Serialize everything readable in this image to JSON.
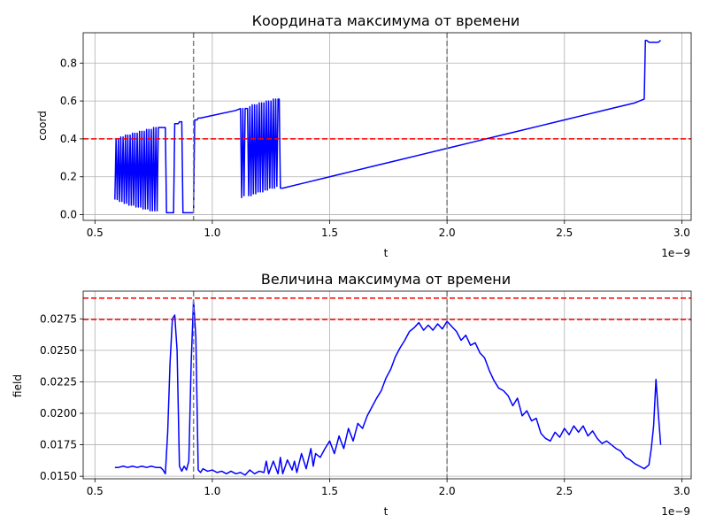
{
  "chart_data": [
    {
      "type": "line",
      "title": "Координата максимума от времени",
      "xlabel": "t",
      "ylabel": "coord",
      "x_offset_text": "1e−9",
      "xlim": [
        0.45,
        3.04
      ],
      "ylim": [
        -0.03,
        0.96
      ],
      "xticks": [
        0.5,
        1.0,
        1.5,
        2.0,
        2.5,
        3.0
      ],
      "xtick_labels": [
        "0.5",
        "1.0",
        "1.5",
        "2.0",
        "2.5",
        "3.0"
      ],
      "yticks": [
        0.0,
        0.2,
        0.4,
        0.6,
        0.8
      ],
      "ytick_labels": [
        "0.0",
        "0.2",
        "0.4",
        "0.6",
        "0.8"
      ],
      "grid": true,
      "series": [
        {
          "color": "#0000ff",
          "x": [
            0.585,
            0.59,
            0.595,
            0.6,
            0.605,
            0.61,
            0.615,
            0.62,
            0.625,
            0.63,
            0.635,
            0.64,
            0.645,
            0.65,
            0.655,
            0.66,
            0.665,
            0.67,
            0.675,
            0.68,
            0.685,
            0.69,
            0.695,
            0.7,
            0.705,
            0.71,
            0.715,
            0.72,
            0.725,
            0.73,
            0.735,
            0.74,
            0.745,
            0.75,
            0.755,
            0.76,
            0.765,
            0.77,
            0.775,
            0.78,
            0.785,
            0.79,
            0.795,
            0.8,
            0.805,
            0.81,
            0.815,
            0.82,
            0.825,
            0.83,
            0.835,
            0.84,
            0.845,
            0.85,
            0.855,
            0.86,
            0.865,
            0.87,
            0.875,
            0.88,
            0.885,
            0.89,
            0.895,
            0.9,
            0.905,
            0.91,
            0.915,
            0.92,
            0.925,
            0.93,
            0.935,
            0.94,
            0.945,
            0.95,
            1.1,
            1.12,
            1.125,
            1.13,
            1.135,
            1.14,
            1.145,
            1.15,
            1.155,
            1.16,
            1.165,
            1.17,
            1.175,
            1.18,
            1.185,
            1.19,
            1.195,
            1.2,
            1.205,
            1.21,
            1.215,
            1.22,
            1.225,
            1.23,
            1.235,
            1.24,
            1.245,
            1.25,
            1.255,
            1.26,
            1.265,
            1.27,
            1.275,
            1.28,
            1.285,
            1.29,
            1.295,
            1.3,
            1.4,
            1.5,
            1.6,
            1.7,
            1.8,
            1.9,
            2.0,
            2.1,
            2.2,
            2.3,
            2.4,
            2.5,
            2.6,
            2.7,
            2.8,
            2.84,
            2.845,
            2.85,
            2.86,
            2.87,
            2.88,
            2.9,
            2.91
          ],
          "y": [
            0.08,
            0.4,
            0.08,
            0.4,
            0.07,
            0.41,
            0.07,
            0.41,
            0.06,
            0.42,
            0.06,
            0.42,
            0.05,
            0.42,
            0.05,
            0.43,
            0.05,
            0.43,
            0.04,
            0.43,
            0.04,
            0.44,
            0.04,
            0.44,
            0.03,
            0.44,
            0.03,
            0.45,
            0.03,
            0.45,
            0.02,
            0.45,
            0.02,
            0.46,
            0.02,
            0.46,
            0.02,
            0.46,
            0.46,
            0.46,
            0.46,
            0.46,
            0.46,
            0.46,
            0.01,
            0.01,
            0.01,
            0.01,
            0.01,
            0.01,
            0.01,
            0.48,
            0.48,
            0.48,
            0.48,
            0.49,
            0.49,
            0.49,
            0.01,
            0.01,
            0.01,
            0.01,
            0.01,
            0.01,
            0.01,
            0.01,
            0.01,
            0.01,
            0.5,
            0.5,
            0.5,
            0.51,
            0.51,
            0.51,
            0.55,
            0.56,
            0.09,
            0.56,
            0.1,
            0.56,
            0.56,
            0.56,
            0.1,
            0.57,
            0.1,
            0.58,
            0.11,
            0.58,
            0.11,
            0.58,
            0.12,
            0.59,
            0.12,
            0.59,
            0.12,
            0.59,
            0.13,
            0.6,
            0.13,
            0.6,
            0.14,
            0.6,
            0.14,
            0.61,
            0.14,
            0.61,
            0.15,
            0.61,
            0.61,
            0.14,
            0.14,
            0.14,
            0.17,
            0.2,
            0.23,
            0.26,
            0.29,
            0.32,
            0.35,
            0.38,
            0.41,
            0.44,
            0.47,
            0.5,
            0.53,
            0.56,
            0.59,
            0.61,
            0.92,
            0.92,
            0.91,
            0.91,
            0.91,
            0.91,
            0.92
          ]
        }
      ],
      "hlines": [
        {
          "y": 0.4,
          "color": "#ff0000"
        }
      ],
      "vlines": [
        {
          "x": 0.92,
          "color": "#808080"
        },
        {
          "x": 2.0,
          "color": "#808080"
        }
      ]
    },
    {
      "type": "line",
      "title": "Величина максимума от времени",
      "xlabel": "t",
      "ylabel": "field",
      "x_offset_text": "1e−9",
      "xlim": [
        0.45,
        3.04
      ],
      "ylim": [
        0.0148,
        0.0297
      ],
      "xticks": [
        0.5,
        1.0,
        1.5,
        2.0,
        2.5,
        3.0
      ],
      "xtick_labels": [
        "0.5",
        "1.0",
        "1.5",
        "2.0",
        "2.5",
        "3.0"
      ],
      "yticks": [
        0.015,
        0.0175,
        0.02,
        0.0225,
        0.025,
        0.0275
      ],
      "ytick_labels": [
        "0.0150",
        "0.0175",
        "0.0200",
        "0.0225",
        "0.0250",
        "0.0275"
      ],
      "grid": true,
      "series": [
        {
          "color": "#0000ff",
          "x": [
            0.585,
            0.6,
            0.62,
            0.64,
            0.66,
            0.68,
            0.7,
            0.72,
            0.74,
            0.76,
            0.78,
            0.79,
            0.8,
            0.81,
            0.82,
            0.83,
            0.84,
            0.85,
            0.86,
            0.87,
            0.88,
            0.89,
            0.9,
            0.91,
            0.92,
            0.93,
            0.94,
            0.95,
            0.96,
            0.98,
            1.0,
            1.02,
            1.04,
            1.06,
            1.08,
            1.1,
            1.12,
            1.14,
            1.16,
            1.18,
            1.2,
            1.22,
            1.23,
            1.24,
            1.26,
            1.28,
            1.29,
            1.3,
            1.32,
            1.34,
            1.35,
            1.36,
            1.38,
            1.4,
            1.42,
            1.43,
            1.44,
            1.46,
            1.48,
            1.5,
            1.52,
            1.54,
            1.56,
            1.58,
            1.6,
            1.62,
            1.64,
            1.66,
            1.68,
            1.7,
            1.72,
            1.74,
            1.76,
            1.78,
            1.8,
            1.82,
            1.84,
            1.86,
            1.88,
            1.9,
            1.92,
            1.94,
            1.96,
            1.98,
            2.0,
            2.02,
            2.04,
            2.06,
            2.08,
            2.1,
            2.12,
            2.14,
            2.16,
            2.18,
            2.2,
            2.22,
            2.24,
            2.26,
            2.28,
            2.3,
            2.32,
            2.34,
            2.36,
            2.38,
            2.4,
            2.42,
            2.44,
            2.46,
            2.48,
            2.5,
            2.52,
            2.54,
            2.56,
            2.58,
            2.6,
            2.62,
            2.64,
            2.66,
            2.68,
            2.7,
            2.72,
            2.74,
            2.76,
            2.78,
            2.8,
            2.82,
            2.84,
            2.86,
            2.87,
            2.88,
            2.89,
            2.9,
            2.91
          ],
          "y": [
            0.0157,
            0.0157,
            0.0158,
            0.0157,
            0.0158,
            0.0157,
            0.0158,
            0.0157,
            0.0158,
            0.0157,
            0.0157,
            0.0155,
            0.0152,
            0.0185,
            0.024,
            0.0275,
            0.0278,
            0.025,
            0.0158,
            0.0154,
            0.0158,
            0.0155,
            0.0162,
            0.024,
            0.029,
            0.026,
            0.0155,
            0.0153,
            0.0156,
            0.0154,
            0.0155,
            0.0153,
            0.0154,
            0.0152,
            0.0154,
            0.0152,
            0.0153,
            0.0151,
            0.0155,
            0.0152,
            0.0154,
            0.0153,
            0.0162,
            0.0152,
            0.0162,
            0.0152,
            0.0165,
            0.0152,
            0.0163,
            0.0155,
            0.0162,
            0.0153,
            0.0168,
            0.0156,
            0.0172,
            0.0158,
            0.0168,
            0.0165,
            0.0172,
            0.0178,
            0.0168,
            0.0182,
            0.0172,
            0.0188,
            0.0178,
            0.0192,
            0.0188,
            0.0198,
            0.0205,
            0.0212,
            0.0218,
            0.0228,
            0.0235,
            0.0245,
            0.0252,
            0.0258,
            0.0265,
            0.0268,
            0.0272,
            0.0266,
            0.027,
            0.0266,
            0.0271,
            0.0267,
            0.0273,
            0.0269,
            0.0265,
            0.0258,
            0.0262,
            0.0254,
            0.0256,
            0.0248,
            0.0244,
            0.0234,
            0.0226,
            0.022,
            0.0218,
            0.0214,
            0.0206,
            0.0212,
            0.0198,
            0.0202,
            0.0194,
            0.0196,
            0.0184,
            0.018,
            0.0178,
            0.0185,
            0.0181,
            0.0188,
            0.0183,
            0.019,
            0.0185,
            0.019,
            0.0182,
            0.0186,
            0.018,
            0.0176,
            0.0178,
            0.0175,
            0.0172,
            0.017,
            0.0165,
            0.0163,
            0.016,
            0.0158,
            0.0156,
            0.0159,
            0.0172,
            0.019,
            0.0227,
            0.02,
            0.0175
          ]
        }
      ],
      "hlines": [
        {
          "y": 0.02915,
          "color": "#ff0000"
        },
        {
          "y": 0.02745,
          "color": "#ff0000"
        }
      ],
      "vlines": [
        {
          "x": 0.92,
          "color": "#808080"
        },
        {
          "x": 2.0,
          "color": "#808080"
        }
      ]
    }
  ]
}
